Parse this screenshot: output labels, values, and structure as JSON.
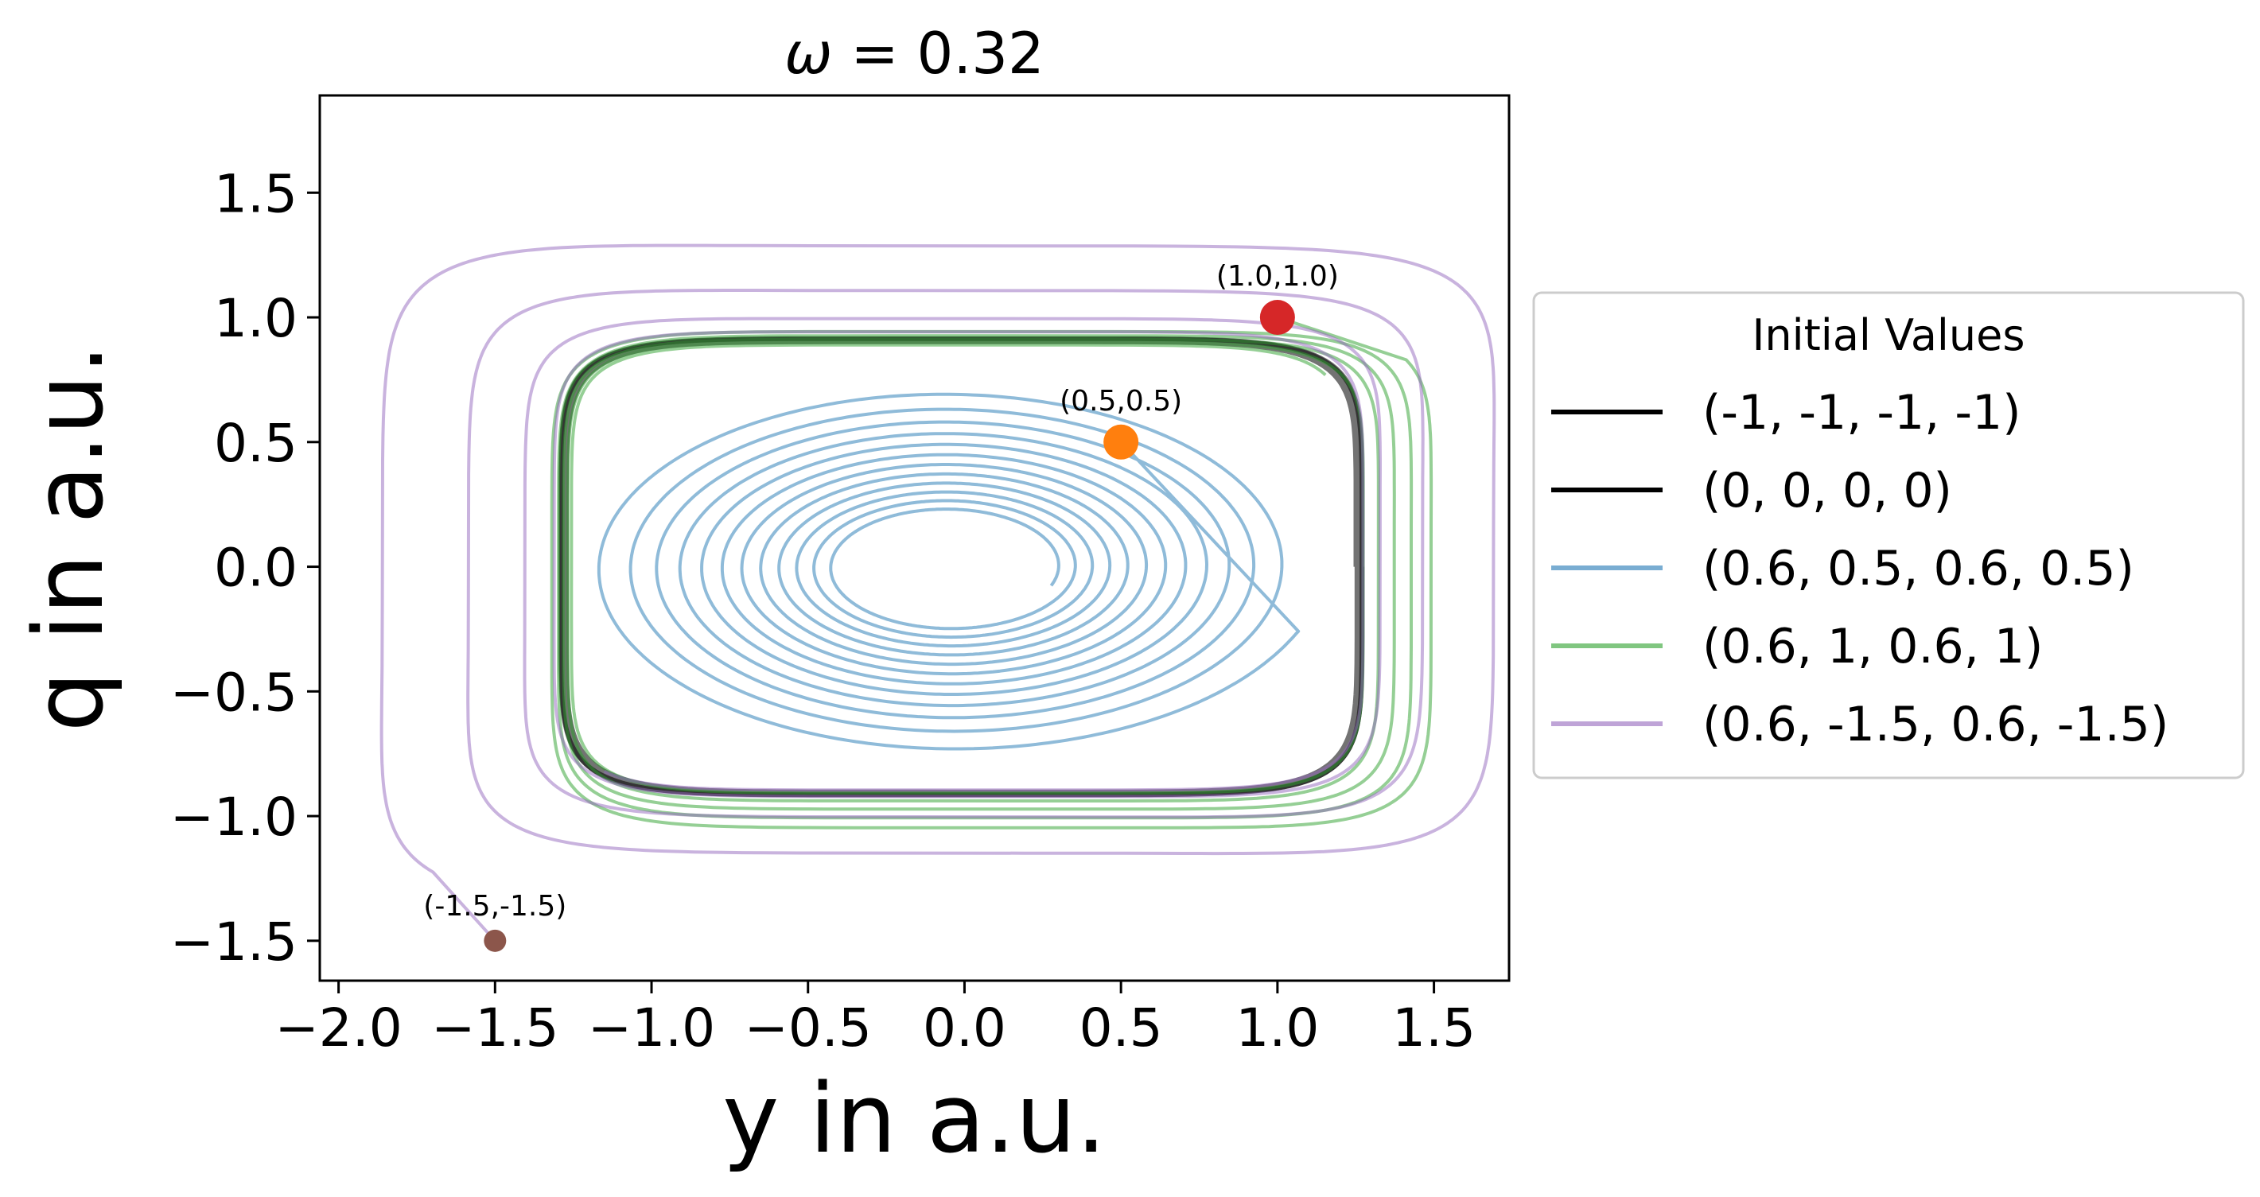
{
  "chart_data": {
    "type": "line",
    "title": "ω = 0.32",
    "title_var": "ω",
    "title_rest": " = 0.32",
    "xlabel": "y in a.u.",
    "ylabel": "q in a.u.",
    "xlim": [
      -2.06,
      1.74
    ],
    "ylim": [
      -1.66,
      1.89
    ],
    "xticks": [
      -2.0,
      -1.5,
      -1.0,
      -0.5,
      0.0,
      0.5,
      1.0,
      1.5
    ],
    "xtick_labels": [
      "−2.0",
      "−1.5",
      "−1.0",
      "−0.5",
      "0.0",
      "0.5",
      "1.0",
      "1.5"
    ],
    "yticks": [
      -1.5,
      -1.0,
      -0.5,
      0.0,
      0.5,
      1.0,
      1.5
    ],
    "ytick_labels": [
      "−1.5",
      "−1.0",
      "−0.5",
      "0.0",
      "0.5",
      "1.0",
      "1.5"
    ],
    "grid": false,
    "legend": {
      "title": "Initial Values",
      "position": "outside-right",
      "entries": [
        "(-1, -1, -1, -1)",
        "(0, 0, 0, 0)",
        "(0.6, 0.5, 0.6, 0.5)",
        "(0.6, 1, 0.6, 1)",
        "(0.6, -1.5, 0.6, -1.5)"
      ]
    },
    "series": [
      {
        "name": "(-1, -1, -1, -1)",
        "color": "#000000",
        "opacity": 0.55,
        "width": 6,
        "curve": "cycle",
        "rmin": 1.0,
        "rmax": 1.0
      },
      {
        "name": "(0, 0, 0, 0)",
        "color": "#000000",
        "opacity": 0.55,
        "width": 6,
        "curve": "cycle",
        "rmin": 0.985,
        "rmax": 1.0
      },
      {
        "name": "(0.6, 0.5, 0.6, 0.5)",
        "color": "#1f77b4",
        "opacity": 0.5,
        "width": 4,
        "curve": "inward",
        "start": [
          0.5,
          0.5
        ]
      },
      {
        "name": "(0.6, 1, 0.6, 1)",
        "color": "#2ca02c",
        "opacity": 0.5,
        "width": 4,
        "curve": "green",
        "start": [
          1.0,
          1.0
        ]
      },
      {
        "name": "(0.6, -1.5, 0.6, -1.5)",
        "color": "#9467bd",
        "opacity": 0.5,
        "width": 4,
        "curve": "purple",
        "start": [
          -1.5,
          -1.5
        ]
      }
    ],
    "limit_cycle": {
      "cx": -0.01,
      "cy": 0.0,
      "a": 1.28,
      "b": 0.915,
      "n": 7.0
    },
    "markers": [
      {
        "x": 1.0,
        "y": 1.0,
        "label": "(1.0,1.0)",
        "color": "#d62728",
        "size": 22
      },
      {
        "x": 0.5,
        "y": 0.5,
        "label": "(0.5,0.5)",
        "color": "#ff7f0e",
        "size": 22
      },
      {
        "x": -1.5,
        "y": -1.5,
        "label": "(-1.5,-1.5)",
        "color": "#8c564b",
        "size": 14
      }
    ]
  }
}
